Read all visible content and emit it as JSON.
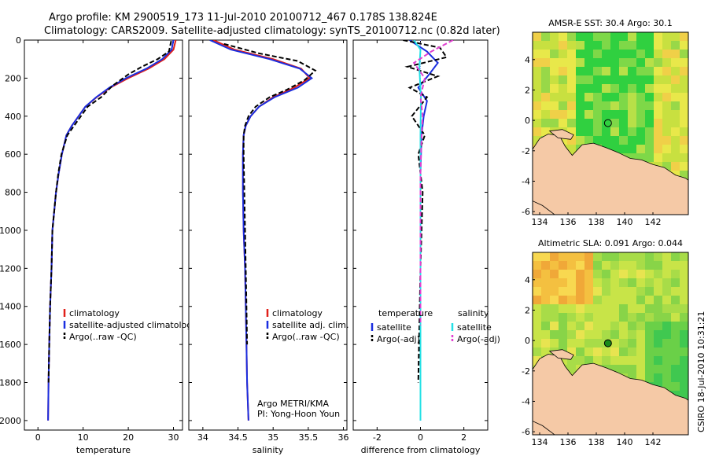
{
  "header": {
    "title_line1": "Argo profile: KM 2900519_173 11-Jul-2010 20100712_467 0.178S 138.824E",
    "title_line2": "Climatology: CARS2009. Satellite-adjusted climatology: synTS_20100712.nc (0.82d later)"
  },
  "credit": {
    "line1": "Argo METRI/KMA",
    "line2": "PI: Yong-Hoon Youn"
  },
  "side_stamp": "CSIRO 18-Jul-2010 10:31:21",
  "colors": {
    "climatology": "#e0201a",
    "satellite": "#1a2ee0",
    "argo": "#000000",
    "salinity_satellite": "#22e0e6",
    "salinity_argo": "#e040d0",
    "land": "#f5c9a6",
    "marker": "#1a8a1a"
  },
  "chart_data": [
    {
      "type": "line",
      "xlabel": "temperature",
      "ylabel": "",
      "xlim": [
        -3,
        32
      ],
      "ylim": [
        2050,
        0
      ],
      "xticks": [
        0,
        10,
        20,
        30
      ],
      "yticks": [
        0,
        200,
        400,
        600,
        800,
        1000,
        1200,
        1400,
        1600,
        1800,
        2000
      ],
      "legend": {
        "placement": "bottom-right",
        "entries": [
          "climatology",
          "satellite-adjusted climatology",
          "Argo(..raw -QC)"
        ]
      },
      "series": [
        {
          "name": "climatology",
          "style": "solid",
          "color_key": "climatology",
          "x": [
            30.5,
            30.0,
            28.0,
            24.5,
            20.0,
            16.0,
            13.0,
            10.5,
            9.0,
            7.5,
            6.3,
            5.3,
            4.6,
            4.0,
            3.6,
            3.2,
            3.0,
            2.7,
            2.5,
            2.35,
            2.25
          ],
          "y": [
            0,
            50,
            100,
            150,
            200,
            250,
            300,
            350,
            400,
            450,
            500,
            600,
            700,
            800,
            900,
            1000,
            1200,
            1400,
            1600,
            1800,
            2000
          ]
        },
        {
          "name": "satellite-adjusted climatology",
          "style": "solid",
          "color_key": "satellite",
          "x": [
            30.0,
            29.6,
            27.5,
            24.0,
            19.5,
            15.8,
            12.9,
            10.5,
            9.0,
            7.5,
            6.3,
            5.3,
            4.6,
            4.0,
            3.6,
            3.2,
            3.0,
            2.7,
            2.5,
            2.35,
            2.25
          ],
          "y": [
            0,
            50,
            100,
            150,
            200,
            250,
            300,
            350,
            400,
            450,
            500,
            600,
            700,
            800,
            900,
            1000,
            1200,
            1400,
            1600,
            1800,
            2000
          ]
        },
        {
          "name": "Argo(..raw -QC)",
          "style": "dashed",
          "color_key": "argo",
          "x": [
            29.5,
            29.0,
            26.5,
            23.0,
            20.0,
            16.5,
            14.0,
            11.0,
            9.5,
            8.0,
            6.5,
            5.2,
            4.5,
            4.0,
            3.6,
            3.2,
            3.0,
            2.7,
            2.5,
            2.35
          ],
          "y": [
            5,
            60,
            100,
            140,
            180,
            240,
            300,
            350,
            400,
            450,
            500,
            600,
            700,
            800,
            900,
            1000,
            1200,
            1400,
            1600,
            1800
          ]
        }
      ]
    },
    {
      "type": "line",
      "xlabel": "salinity",
      "ylabel": "",
      "xlim": [
        33.8,
        36.05
      ],
      "ylim": [
        2050,
        0
      ],
      "xticks": [
        34,
        34.5,
        35,
        35.5,
        36
      ],
      "legend": {
        "placement": "bottom-right",
        "entries": [
          "climatology",
          "satellite adj. clim.",
          "Argo(..raw -QC)"
        ]
      },
      "series": [
        {
          "name": "climatology",
          "style": "solid",
          "color_key": "climatology",
          "x": [
            34.15,
            34.45,
            35.0,
            35.4,
            35.52,
            35.3,
            35.0,
            34.8,
            34.68,
            34.61,
            34.58,
            34.57,
            34.57,
            34.58,
            34.6,
            34.61,
            34.62,
            34.63,
            34.64,
            34.65
          ],
          "y": [
            0,
            50,
            100,
            150,
            200,
            250,
            300,
            350,
            400,
            450,
            500,
            600,
            800,
            1000,
            1200,
            1400,
            1600,
            1800,
            1900,
            2000
          ]
        },
        {
          "name": "satellite adj. clim.",
          "style": "solid",
          "color_key": "satellite",
          "x": [
            34.1,
            34.4,
            34.95,
            35.38,
            35.55,
            35.35,
            35.02,
            34.8,
            34.68,
            34.61,
            34.58,
            34.57,
            34.57,
            34.58,
            34.6,
            34.61,
            34.62,
            34.63,
            34.64,
            34.65
          ],
          "y": [
            0,
            50,
            100,
            150,
            200,
            250,
            300,
            350,
            400,
            450,
            500,
            600,
            800,
            1000,
            1200,
            1400,
            1600,
            1800,
            1900,
            2000
          ]
        },
        {
          "name": "Argo(..raw -QC)",
          "style": "dashed",
          "color_key": "argo",
          "x": [
            34.3,
            34.8,
            35.35,
            35.6,
            35.45,
            35.2,
            34.95,
            34.75,
            34.65,
            34.6,
            34.58,
            34.58,
            34.59,
            34.6,
            34.61,
            34.62,
            34.63
          ],
          "y": [
            20,
            70,
            110,
            160,
            210,
            260,
            300,
            350,
            400,
            450,
            500,
            600,
            800,
            1000,
            1200,
            1400,
            1600
          ]
        }
      ]
    },
    {
      "type": "line",
      "xlabel": "difference from climatology",
      "ylabel": "",
      "xlim": [
        -3.1,
        3.1
      ],
      "ylim": [
        2050,
        0
      ],
      "xticks": [
        -2,
        0,
        2
      ],
      "legend": {
        "placement": "bottom",
        "temperature_heading": "temperature",
        "salinity_heading": "salinity",
        "temperature_entries": [
          "satellite",
          "Argo(-adj)"
        ],
        "salinity_entries": [
          "satellite",
          "Argo(-adj)"
        ]
      },
      "series": [
        {
          "name": "temperature satellite",
          "style": "solid",
          "color_key": "satellite",
          "x": [
            -0.5,
            0.3,
            0.8,
            0.4,
            -0.1,
            0.3,
            0.15,
            0.05,
            0.0,
            0.0,
            0.0,
            0.0
          ],
          "y": [
            0,
            60,
            120,
            180,
            250,
            320,
            400,
            500,
            700,
            1000,
            1500,
            2000
          ]
        },
        {
          "name": "temperature Argo(-adj)",
          "style": "dashed",
          "color_key": "argo",
          "x": [
            -0.8,
            0.9,
            1.2,
            -0.6,
            0.8,
            -0.5,
            0.3,
            -0.4,
            0.2,
            -0.1,
            0.1,
            0.0,
            -0.1
          ],
          "y": [
            0,
            40,
            90,
            140,
            190,
            250,
            300,
            400,
            500,
            600,
            800,
            1200,
            1800
          ]
        },
        {
          "name": "salinity satellite",
          "style": "solid",
          "color_key": "salinity_satellite",
          "x": [
            -0.3,
            0.0,
            -0.05,
            0.02,
            0.0,
            0.0,
            0.0
          ],
          "y": [
            0,
            50,
            150,
            300,
            500,
            1000,
            2000
          ]
        },
        {
          "name": "salinity Argo(-adj)",
          "style": "dashed",
          "color_key": "salinity_argo",
          "x": [
            1.5,
            0.5,
            -0.3,
            0.2,
            0.0,
            0.1,
            0.05,
            0.0,
            0.0,
            0.0
          ],
          "y": [
            0,
            60,
            120,
            200,
            300,
            400,
            500,
            700,
            1000,
            1500
          ]
        }
      ]
    },
    {
      "type": "heatmap",
      "title": "AMSR-E SST: 30.4 Argo: 30.1",
      "xlim": [
        133.5,
        144.5
      ],
      "ylim": [
        -6.2,
        5.8
      ],
      "xticks": [
        134,
        136,
        138,
        140,
        142
      ],
      "yticks": [
        -6,
        -4,
        -2,
        0,
        2,
        4
      ],
      "marker": [
        138.824,
        -0.178
      ]
    },
    {
      "type": "heatmap",
      "title": "Altimetric SLA: 0.091 Argo: 0.044",
      "xlim": [
        133.5,
        144.5
      ],
      "ylim": [
        -6.2,
        5.8
      ],
      "xticks": [
        134,
        136,
        138,
        140,
        142
      ],
      "yticks": [
        -6,
        -4,
        -2,
        0,
        2,
        4
      ],
      "marker": [
        138.824,
        -0.178
      ]
    }
  ]
}
